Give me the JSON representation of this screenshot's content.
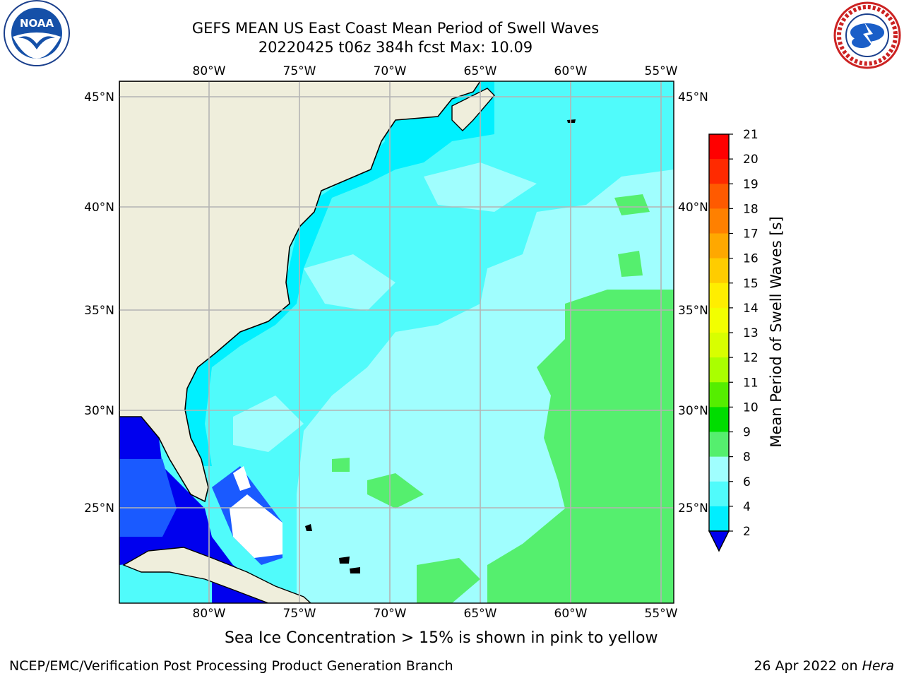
{
  "title": {
    "line1": "GEFS MEAN US East Coast Mean Period of Swell Waves",
    "line2": "20220425 t06z 384h fcst   Max: 10.09"
  },
  "logos": {
    "left": {
      "text": "NOAA",
      "icon": "noaa-logo-icon"
    },
    "right": {
      "icon": "national-weather-service-logo-icon"
    }
  },
  "map": {
    "lon_labels": [
      "80°W",
      "75°W",
      "70°W",
      "65°W",
      "60°W",
      "55°W"
    ],
    "lat_labels": [
      "45°N",
      "40°N",
      "35°N",
      "30°N",
      "25°N"
    ],
    "colors": {
      "land": "#efeedc",
      "grid": "#b4b4b4",
      "coast": "#000000"
    }
  },
  "colorbar": {
    "title": "Mean Period of Swell Waves [s]",
    "levels": [
      "21",
      "20",
      "19",
      "18",
      "17",
      "16",
      "15",
      "14",
      "13",
      "12",
      "11",
      "10",
      "9",
      "8",
      "6",
      "4",
      "2"
    ],
    "colors": [
      "#ff0000",
      "#ff2a00",
      "#ff5a00",
      "#ff8000",
      "#ffa800",
      "#ffcc00",
      "#ffee00",
      "#f2ff00",
      "#d8ff00",
      "#aaff00",
      "#55ee00",
      "#00dd00",
      "#55ef6e",
      "#a0fefe",
      "#50fbfb",
      "#00eeff",
      "#0066ff"
    ],
    "underflow_color": "#0000ee"
  },
  "footer": {
    "ice_note": "Sea Ice Concentration > 15% is shown in pink to yellow",
    "credit_left": "NCEP/EMC/Verification Post Processing Product Generation Branch",
    "credit_date": "26 Apr 2022 on ",
    "credit_host": "Hera"
  }
}
